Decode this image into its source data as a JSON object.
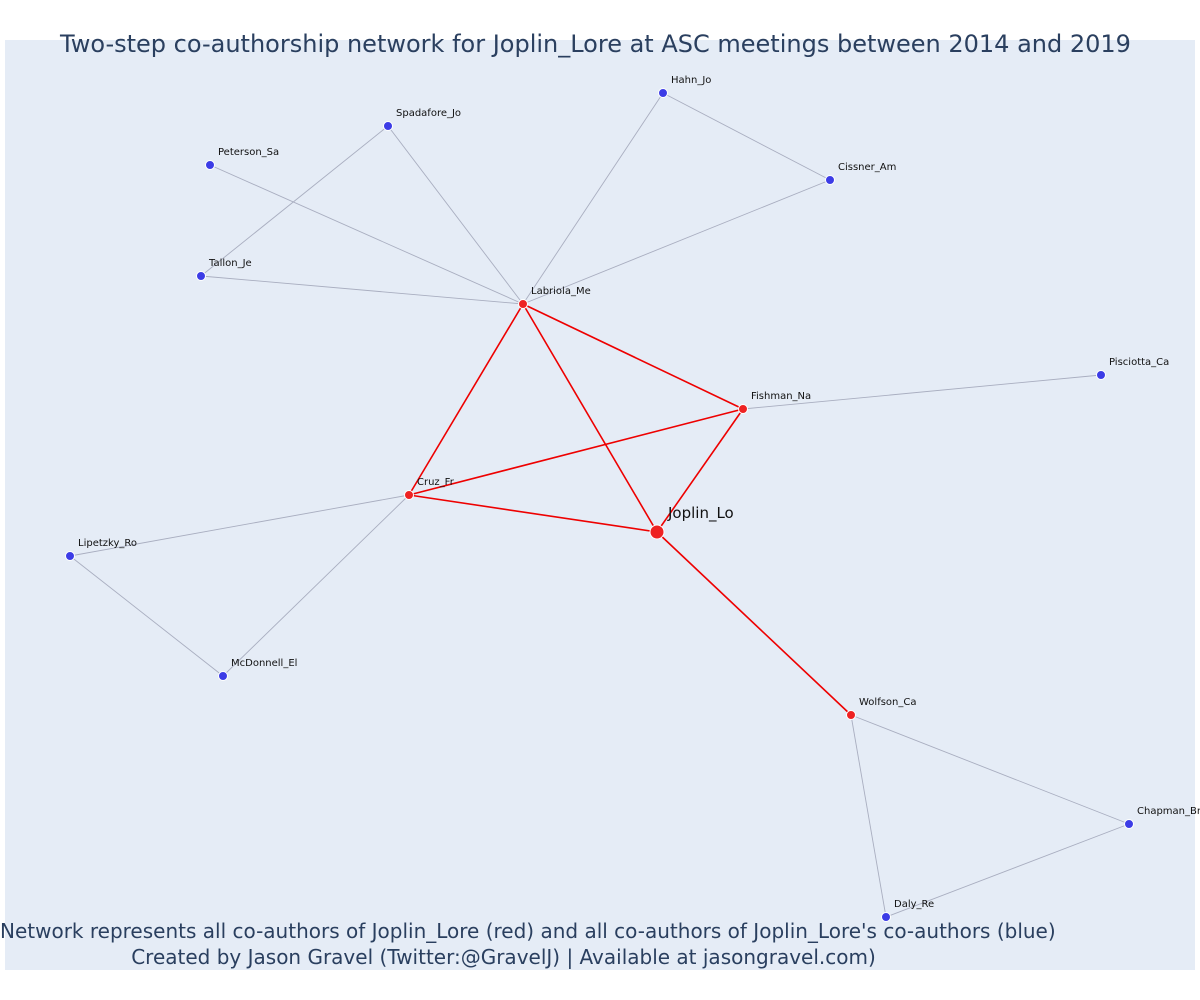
{
  "title": "Two-step co-authorship network for Joplin_Lore at ASC meetings between 2014 and 2019",
  "caption": {
    "line1": "Network represents all co-authors of Joplin_Lore (red) and all co-authors of Joplin_Lore's co-authors (blue)",
    "line2": "Created by Jason Gravel (Twitter:@GravelJ) | Available at jasongravel.com)"
  },
  "colors": {
    "plot_background": "#e5ecf6",
    "text": "#2a3f5f",
    "focal_node": "#ee2222",
    "first_step_node": "#ee2222",
    "second_step_node": "#3c3ce6",
    "first_step_edge": "#ee0000",
    "second_step_edge": "#a9aec0"
  },
  "chart_data": {
    "type": "network",
    "focal": "Joplin_Lo",
    "nodes": [
      {
        "id": "Joplin_Lo",
        "group": "focal"
      },
      {
        "id": "Labriola_Me",
        "group": "coauthor"
      },
      {
        "id": "Fishman_Na",
        "group": "coauthor"
      },
      {
        "id": "Cruz_Fr",
        "group": "coauthor"
      },
      {
        "id": "Wolfson_Ca",
        "group": "coauthor"
      },
      {
        "id": "Hahn_Jo",
        "group": "second"
      },
      {
        "id": "Cissner_Am",
        "group": "second"
      },
      {
        "id": "Spadafore_Jo",
        "group": "second"
      },
      {
        "id": "Peterson_Sa",
        "group": "second"
      },
      {
        "id": "Tallon_Je",
        "group": "second"
      },
      {
        "id": "Pisciotta_Ca",
        "group": "second"
      },
      {
        "id": "Lipetzky_Ro",
        "group": "second"
      },
      {
        "id": "McDonnell_El",
        "group": "second"
      },
      {
        "id": "Chapman_Br",
        "group": "second"
      },
      {
        "id": "Daly_Re",
        "group": "second"
      }
    ],
    "edges": [
      {
        "source": "Joplin_Lo",
        "target": "Labriola_Me",
        "type": "first"
      },
      {
        "source": "Joplin_Lo",
        "target": "Fishman_Na",
        "type": "first"
      },
      {
        "source": "Joplin_Lo",
        "target": "Cruz_Fr",
        "type": "first"
      },
      {
        "source": "Joplin_Lo",
        "target": "Wolfson_Ca",
        "type": "first"
      },
      {
        "source": "Labriola_Me",
        "target": "Fishman_Na",
        "type": "first"
      },
      {
        "source": "Labriola_Me",
        "target": "Cruz_Fr",
        "type": "first"
      },
      {
        "source": "Cruz_Fr",
        "target": "Fishman_Na",
        "type": "first"
      },
      {
        "source": "Labriola_Me",
        "target": "Hahn_Jo",
        "type": "second"
      },
      {
        "source": "Labriola_Me",
        "target": "Cissner_Am",
        "type": "second"
      },
      {
        "source": "Hahn_Jo",
        "target": "Cissner_Am",
        "type": "second"
      },
      {
        "source": "Labriola_Me",
        "target": "Spadafore_Jo",
        "type": "second"
      },
      {
        "source": "Labriola_Me",
        "target": "Peterson_Sa",
        "type": "second"
      },
      {
        "source": "Labriola_Me",
        "target": "Tallon_Je",
        "type": "second"
      },
      {
        "source": "Spadafore_Jo",
        "target": "Tallon_Je",
        "type": "second"
      },
      {
        "source": "Fishman_Na",
        "target": "Pisciotta_Ca",
        "type": "second"
      },
      {
        "source": "Cruz_Fr",
        "target": "Lipetzky_Ro",
        "type": "second"
      },
      {
        "source": "Cruz_Fr",
        "target": "McDonnell_El",
        "type": "second"
      },
      {
        "source": "Lipetzky_Ro",
        "target": "McDonnell_El",
        "type": "second"
      },
      {
        "source": "Wolfson_Ca",
        "target": "Chapman_Br",
        "type": "second"
      },
      {
        "source": "Wolfson_Ca",
        "target": "Daly_Re",
        "type": "second"
      },
      {
        "source": "Chapman_Br",
        "target": "Daly_Re",
        "type": "second"
      }
    ]
  }
}
